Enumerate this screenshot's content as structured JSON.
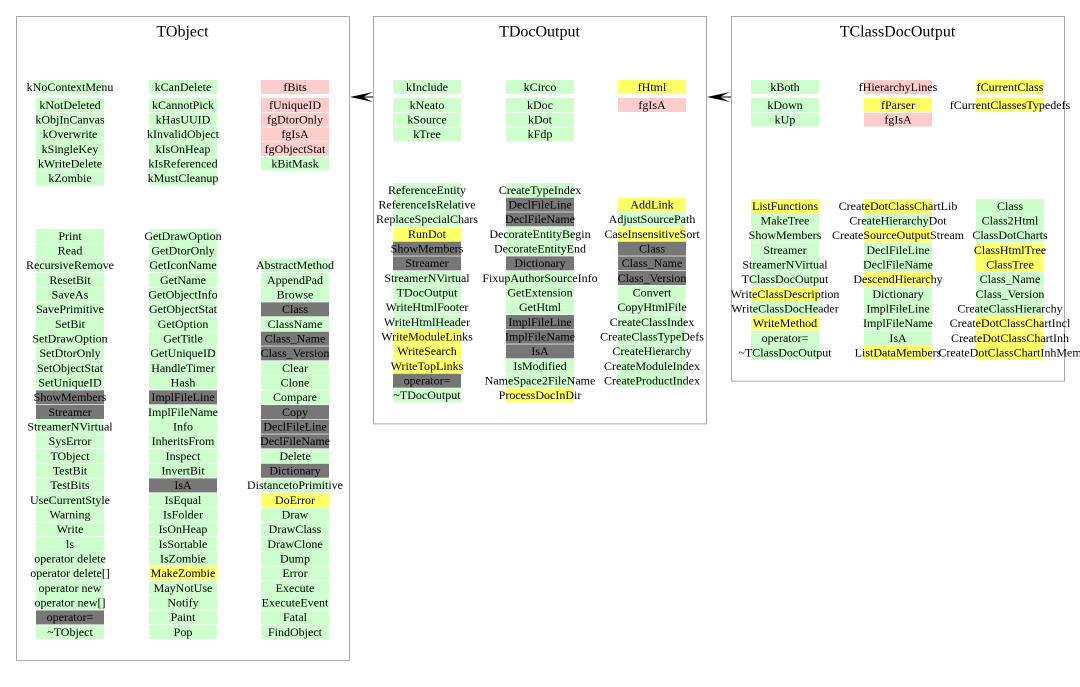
{
  "classes": [
    {
      "name": "TObject",
      "data_members": [
        [
          {
            "label": "kNoContextMenu",
            "color": "#ccffcc"
          },
          {
            "label": "kNotDeleted",
            "color": "#ccffcc"
          },
          {
            "label": "kObjInCanvas",
            "color": "#ccffcc"
          },
          {
            "label": "kOverwrite",
            "color": "#ccffcc"
          },
          {
            "label": "kSingleKey",
            "color": "#ccffcc"
          },
          {
            "label": "kWriteDelete",
            "color": "#ccffcc"
          },
          {
            "label": "kZombie",
            "color": "#ccffcc"
          }
        ],
        [
          {
            "label": "kCanDelete",
            "color": "#ccffcc"
          },
          {
            "label": "kCannotPick",
            "color": "#ccffcc"
          },
          {
            "label": "kHasUUID",
            "color": "#ccffcc"
          },
          {
            "label": "kInvalidObject",
            "color": "#ccffcc"
          },
          {
            "label": "kIsOnHeap",
            "color": "#ccffcc"
          },
          {
            "label": "kIsReferenced",
            "color": "#ccffcc"
          },
          {
            "label": "kMustCleanup",
            "color": "#ccffcc"
          }
        ],
        [
          {
            "label": "fBits",
            "color": "#ffcccc"
          },
          {
            "label": "fUniqueID",
            "color": "#ffcccc"
          },
          {
            "label": "fgDtorOnly",
            "color": "#ffcccc"
          },
          {
            "label": "fgIsA",
            "color": "#ffcccc"
          },
          {
            "label": "fgObjectStat",
            "color": "#ffcccc"
          },
          {
            "label": "kBitMask",
            "color": "#ccffcc"
          }
        ]
      ],
      "methods": [
        [
          {
            "label": "Print",
            "color": "#ccffcc"
          },
          {
            "label": "Read",
            "color": "#ccffcc"
          },
          {
            "label": "RecursiveRemove",
            "color": "#ccffcc"
          },
          {
            "label": "ResetBit",
            "color": "#ccffcc"
          },
          {
            "label": "SaveAs",
            "color": "#ccffcc"
          },
          {
            "label": "SavePrimitive",
            "color": "#ccffcc"
          },
          {
            "label": "SetBit",
            "color": "#ccffcc"
          },
          {
            "label": "SetDrawOption",
            "color": "#ccffcc"
          },
          {
            "label": "SetDtorOnly",
            "color": "#ccffcc"
          },
          {
            "label": "SetObjectStat",
            "color": "#ccffcc"
          },
          {
            "label": "SetUniqueID",
            "color": "#ccffcc"
          },
          {
            "label": "ShowMembers",
            "color": "#777777"
          },
          {
            "label": "Streamer",
            "color": "#777777"
          },
          {
            "label": "StreamerNVirtual",
            "color": "#ccffcc"
          },
          {
            "label": "SysError",
            "color": "#ccffcc"
          },
          {
            "label": "TObject",
            "color": "#ccffcc"
          },
          {
            "label": "TestBit",
            "color": "#ccffcc"
          },
          {
            "label": "TestBits",
            "color": "#ccffcc"
          },
          {
            "label": "UseCurrentStyle",
            "color": "#ccffcc"
          },
          {
            "label": "Warning",
            "color": "#ccffcc"
          },
          {
            "label": "Write",
            "color": "#ccffcc"
          },
          {
            "label": "ls",
            "color": "#ccffcc"
          },
          {
            "label": "operator delete",
            "color": "#ccffcc"
          },
          {
            "label": "operator delete[]",
            "color": "#ccffcc"
          },
          {
            "label": "operator new",
            "color": "#ccffcc"
          },
          {
            "label": "operator new[]",
            "color": "#ccffcc"
          },
          {
            "label": "operator=",
            "color": "#777777"
          },
          {
            "label": "~TObject",
            "color": "#ccffcc"
          }
        ],
        [
          {
            "label": "GetDrawOption",
            "color": "#ccffcc"
          },
          {
            "label": "GetDtorOnly",
            "color": "#ccffcc"
          },
          {
            "label": "GetIconName",
            "color": "#ccffcc"
          },
          {
            "label": "GetName",
            "color": "#ccffcc"
          },
          {
            "label": "GetObjectInfo",
            "color": "#ccffcc"
          },
          {
            "label": "GetObjectStat",
            "color": "#ccffcc"
          },
          {
            "label": "GetOption",
            "color": "#ccffcc"
          },
          {
            "label": "GetTitle",
            "color": "#ccffcc"
          },
          {
            "label": "GetUniqueID",
            "color": "#ccffcc"
          },
          {
            "label": "HandleTimer",
            "color": "#ccffcc"
          },
          {
            "label": "Hash",
            "color": "#ccffcc"
          },
          {
            "label": "ImplFileLine",
            "color": "#777777"
          },
          {
            "label": "ImplFileName",
            "color": "#ccffcc"
          },
          {
            "label": "Info",
            "color": "#ccffcc"
          },
          {
            "label": "InheritsFrom",
            "color": "#ccffcc"
          },
          {
            "label": "Inspect",
            "color": "#ccffcc"
          },
          {
            "label": "InvertBit",
            "color": "#ccffcc"
          },
          {
            "label": "IsA",
            "color": "#777777"
          },
          {
            "label": "IsEqual",
            "color": "#ccffcc"
          },
          {
            "label": "IsFolder",
            "color": "#ccffcc"
          },
          {
            "label": "IsOnHeap",
            "color": "#ccffcc"
          },
          {
            "label": "IsSortable",
            "color": "#ccffcc"
          },
          {
            "label": "IsZombie",
            "color": "#ccffcc"
          },
          {
            "label": "MakeZombie",
            "color": "#ffff66"
          },
          {
            "label": "MayNotUse",
            "color": "#ccffcc"
          },
          {
            "label": "Notify",
            "color": "#ccffcc"
          },
          {
            "label": "Paint",
            "color": "#ccffcc"
          },
          {
            "label": "Pop",
            "color": "#ccffcc"
          }
        ],
        [
          {
            "label": "AbstractMethod",
            "color": "#ccffcc"
          },
          {
            "label": "AppendPad",
            "color": "#ccffcc"
          },
          {
            "label": "Browse",
            "color": "#ccffcc"
          },
          {
            "label": "Class",
            "color": "#777777"
          },
          {
            "label": "ClassName",
            "color": "#ccffcc"
          },
          {
            "label": "Class_Name",
            "color": "#777777"
          },
          {
            "label": "Class_Version",
            "color": "#777777"
          },
          {
            "label": "Clear",
            "color": "#ccffcc"
          },
          {
            "label": "Clone",
            "color": "#ccffcc"
          },
          {
            "label": "Compare",
            "color": "#ccffcc"
          },
          {
            "label": "Copy",
            "color": "#777777"
          },
          {
            "label": "DeclFileLine",
            "color": "#777777"
          },
          {
            "label": "DeclFileName",
            "color": "#777777"
          },
          {
            "label": "Delete",
            "color": "#ccffcc"
          },
          {
            "label": "Dictionary",
            "color": "#777777"
          },
          {
            "label": "DistancetoPrimitive",
            "color": "#ccffcc"
          },
          {
            "label": "DoError",
            "color": "#ffff66"
          },
          {
            "label": "Draw",
            "color": "#ccffcc"
          },
          {
            "label": "DrawClass",
            "color": "#ccffcc"
          },
          {
            "label": "DrawClone",
            "color": "#ccffcc"
          },
          {
            "label": "Dump",
            "color": "#ccffcc"
          },
          {
            "label": "Error",
            "color": "#ccffcc"
          },
          {
            "label": "Execute",
            "color": "#ccffcc"
          },
          {
            "label": "ExecuteEvent",
            "color": "#ccffcc"
          },
          {
            "label": "Fatal",
            "color": "#ccffcc"
          },
          {
            "label": "FindObject",
            "color": "#ccffcc"
          }
        ]
      ]
    },
    {
      "name": "TDocOutput",
      "data_members": [
        [
          {
            "label": "kInclude",
            "color": "#ccffcc"
          },
          {
            "label": "kNeato",
            "color": "#ccffcc"
          },
          {
            "label": "kSource",
            "color": "#ccffcc"
          },
          {
            "label": "kTree",
            "color": "#ccffcc"
          }
        ],
        [
          {
            "label": "kCirco",
            "color": "#ccffcc"
          },
          {
            "label": "kDoc",
            "color": "#ccffcc"
          },
          {
            "label": "kDot",
            "color": "#ccffcc"
          },
          {
            "label": "kFdp",
            "color": "#ccffcc"
          }
        ],
        [
          {
            "label": "fHtml",
            "color": "#ffff66"
          },
          {
            "label": "fgIsA",
            "color": "#ffcccc"
          }
        ]
      ],
      "methods": [
        [
          {
            "label": "ReferenceEntity",
            "color": "#ccffcc"
          },
          {
            "label": "ReferenceIsRelative",
            "color": "#ccffcc"
          },
          {
            "label": "ReplaceSpecialChars",
            "color": "#ccffcc"
          },
          {
            "label": "RunDot",
            "color": "#ffff66"
          },
          {
            "label": "ShowMembers",
            "color": "#777777"
          },
          {
            "label": "Streamer",
            "color": "#777777"
          },
          {
            "label": "StreamerNVirtual",
            "color": "#ccffcc"
          },
          {
            "label": "TDocOutput",
            "color": "#ccffcc"
          },
          {
            "label": "WriteHtmlFooter",
            "color": "#ccffcc"
          },
          {
            "label": "WriteHtmlHeader",
            "color": "#ccffcc"
          },
          {
            "label": "WriteModuleLinks",
            "color": "#ffff66"
          },
          {
            "label": "WriteSearch",
            "color": "#ffff66"
          },
          {
            "label": "WriteTopLinks",
            "color": "#ffff66"
          },
          {
            "label": "operator=",
            "color": "#777777"
          },
          {
            "label": "~TDocOutput",
            "color": "#ccffcc"
          }
        ],
        [
          {
            "label": "CreateTypeIndex",
            "color": "#ccffcc"
          },
          {
            "label": "DeclFileLine",
            "color": "#777777"
          },
          {
            "label": "DeclFileName",
            "color": "#777777"
          },
          {
            "label": "DecorateEntityBegin",
            "color": "#ccffcc"
          },
          {
            "label": "DecorateEntityEnd",
            "color": "#ccffcc"
          },
          {
            "label": "Dictionary",
            "color": "#777777"
          },
          {
            "label": "FixupAuthorSourceInfo",
            "color": "#ccffcc"
          },
          {
            "label": "GetExtension",
            "color": "#ccffcc"
          },
          {
            "label": "GetHtml",
            "color": "#ccffcc"
          },
          {
            "label": "ImplFileLine",
            "color": "#777777"
          },
          {
            "label": "ImplFileName",
            "color": "#777777"
          },
          {
            "label": "IsA",
            "color": "#777777"
          },
          {
            "label": "IsModified",
            "color": "#ccffcc"
          },
          {
            "label": "NameSpace2FileName",
            "color": "#ccffcc"
          },
          {
            "label": "ProcessDocInDir",
            "color": "#ffff66"
          }
        ],
        [
          {
            "label": "AddLink",
            "color": "#ffff66"
          },
          {
            "label": "AdjustSourcePath",
            "color": "#ccffcc"
          },
          {
            "label": "CaseInsensitiveSort",
            "color": "#ffff66"
          },
          {
            "label": "Class",
            "color": "#777777"
          },
          {
            "label": "Class_Name",
            "color": "#777777"
          },
          {
            "label": "Class_Version",
            "color": "#777777"
          },
          {
            "label": "Convert",
            "color": "#ccffcc"
          },
          {
            "label": "CopyHtmlFile",
            "color": "#ccffcc"
          },
          {
            "label": "CreateClassIndex",
            "color": "#ccffcc"
          },
          {
            "label": "CreateClassTypeDefs",
            "color": "#ccffcc"
          },
          {
            "label": "CreateHierarchy",
            "color": "#ccffcc"
          },
          {
            "label": "CreateModuleIndex",
            "color": "#ccffcc"
          },
          {
            "label": "CreateProductIndex",
            "color": "#ccffcc"
          }
        ]
      ]
    },
    {
      "name": "TClassDocOutput",
      "data_members": [
        [
          {
            "label": "kBoth",
            "color": "#ccffcc"
          },
          {
            "label": "kDown",
            "color": "#ccffcc"
          },
          {
            "label": "kUp",
            "color": "#ccffcc"
          }
        ],
        [
          {
            "label": "fHierarchyLines",
            "color": "#ffcccc"
          },
          {
            "label": "fParser",
            "color": "#ffff66"
          },
          {
            "label": "fgIsA",
            "color": "#ffcccc"
          }
        ],
        [
          {
            "label": "fCurrentClass",
            "color": "#ffff66"
          },
          {
            "label": "fCurrentClassesTypedefs",
            "color": "#ffff66"
          }
        ]
      ],
      "methods": [
        [
          {
            "label": "ListFunctions",
            "color": "#ffff66"
          },
          {
            "label": "MakeTree",
            "color": "#ccffcc"
          },
          {
            "label": "ShowMembers",
            "color": "#ccffcc"
          },
          {
            "label": "Streamer",
            "color": "#ccffcc"
          },
          {
            "label": "StreamerNVirtual",
            "color": "#ccffcc"
          },
          {
            "label": "TClassDocOutput",
            "color": "#ccffcc"
          },
          {
            "label": "WriteClassDescription",
            "color": "#ffff66"
          },
          {
            "label": "WriteClassDocHeader",
            "color": "#ccffcc"
          },
          {
            "label": "WriteMethod",
            "color": "#ffff66"
          },
          {
            "label": "operator=",
            "color": "#ccffcc"
          },
          {
            "label": "~TClassDocOutput",
            "color": "#ccffcc"
          }
        ],
        [
          {
            "label": "CreateDotClassChartLib",
            "color": "#ffff66"
          },
          {
            "label": "CreateHierarchyDot",
            "color": "#ccffcc"
          },
          {
            "label": "CreateSourceOutputStream",
            "color": "#ffff66"
          },
          {
            "label": "DeclFileLine",
            "color": "#ccffcc"
          },
          {
            "label": "DeclFileName",
            "color": "#ccffcc"
          },
          {
            "label": "DescendHierarchy",
            "color": "#ffff66"
          },
          {
            "label": "Dictionary",
            "color": "#ccffcc"
          },
          {
            "label": "ImplFileLine",
            "color": "#ccffcc"
          },
          {
            "label": "ImplFileName",
            "color": "#ccffcc"
          },
          {
            "label": "IsA",
            "color": "#ccffcc"
          },
          {
            "label": "ListDataMembers",
            "color": "#ffff66"
          }
        ],
        [
          {
            "label": "Class",
            "color": "#ccffcc"
          },
          {
            "label": "Class2Html",
            "color": "#ccffcc"
          },
          {
            "label": "ClassDotCharts",
            "color": "#ccffcc"
          },
          {
            "label": "ClassHtmlTree",
            "color": "#ffff66"
          },
          {
            "label": "ClassTree",
            "color": "#ffff66"
          },
          {
            "label": "Class_Name",
            "color": "#ccffcc"
          },
          {
            "label": "Class_Version",
            "color": "#ccffcc"
          },
          {
            "label": "CreateClassHierarchy",
            "color": "#ccffcc"
          },
          {
            "label": "CreateDotClassChartIncl",
            "color": "#ffff66"
          },
          {
            "label": "CreateDotClassChartInh",
            "color": "#ffff66"
          },
          {
            "label": "CreateDotClassChartInhMem",
            "color": "#ffff66"
          }
        ]
      ]
    }
  ]
}
